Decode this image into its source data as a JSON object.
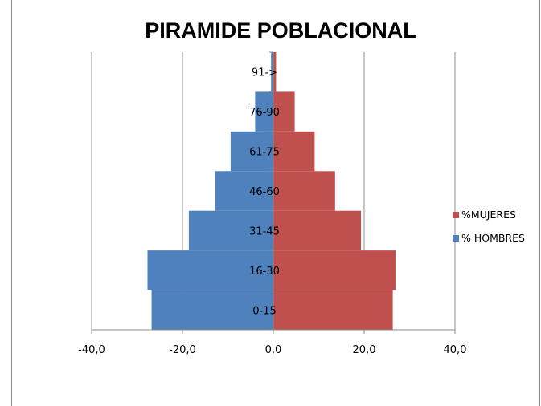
{
  "chart_data": {
    "type": "bar",
    "orientation": "horizontal",
    "title": "PIRAMIDE POBLACIONAL",
    "categories": [
      "0-15",
      "16-30",
      "31-45",
      "46-60",
      "61-75",
      "76-90",
      "91->"
    ],
    "series": [
      {
        "name": "%MUJERES",
        "color": "#c0504d",
        "values": [
          26.3,
          26.9,
          19.3,
          13.6,
          9.1,
          4.7,
          0.6
        ]
      },
      {
        "name": "% HOMBRES",
        "color": "#4f81bd",
        "values": [
          -26.8,
          -27.7,
          -18.6,
          -12.8,
          -9.4,
          -4.0,
          -0.5
        ]
      }
    ],
    "xlim": [
      -40,
      40
    ],
    "x_ticks": [
      "-40,0",
      "-20,0",
      "0,0",
      "20,0",
      "40,0"
    ],
    "x_tick_values": [
      -40,
      -20,
      0,
      20,
      40
    ],
    "grid": "vertical",
    "legend_position": "right"
  }
}
